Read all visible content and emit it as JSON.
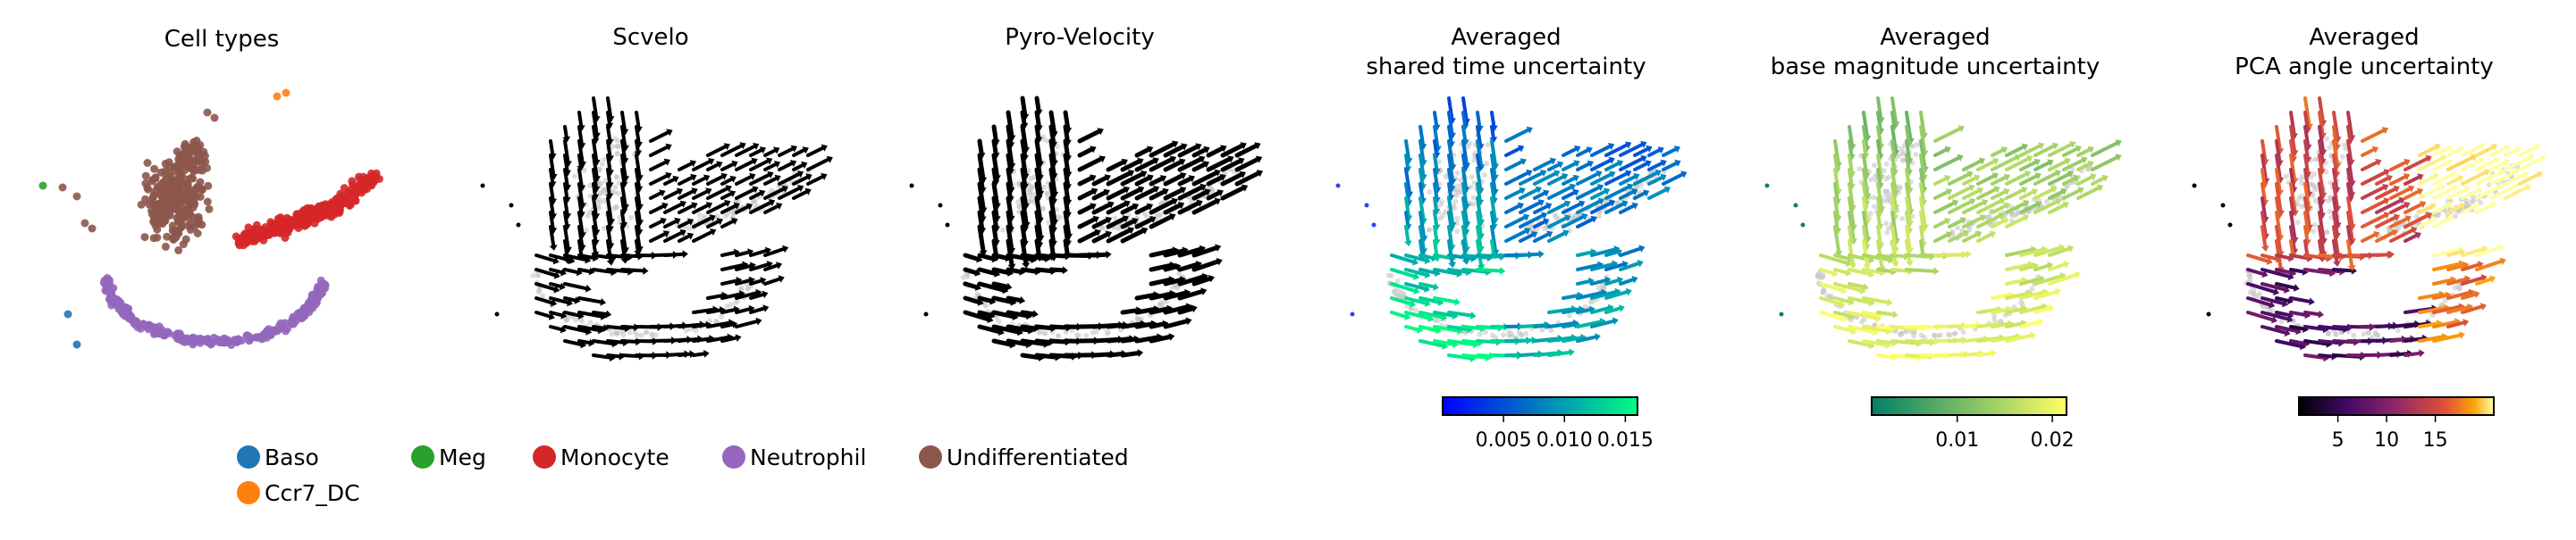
{
  "figure": {
    "panels": [
      {
        "title_lines": [
          "Cell types"
        ]
      },
      {
        "title_lines": [
          "Scvelo"
        ]
      },
      {
        "title_lines": [
          "Pyro-Velocity"
        ]
      },
      {
        "title_lines": [
          "Averaged",
          "shared time uncertainty"
        ]
      },
      {
        "title_lines": [
          "Averaged",
          "base magnitude uncertainty"
        ]
      },
      {
        "title_lines": [
          "Averaged",
          "PCA angle uncertainty"
        ]
      }
    ]
  },
  "chart_data": [
    {
      "type": "scatter",
      "title": "Cell types",
      "legend": {
        "placement": "bottom",
        "entries": [
          {
            "label": "Baso",
            "color": "#1f77b4"
          },
          {
            "label": "Meg",
            "color": "#2ca02c"
          },
          {
            "label": "Monocyte",
            "color": "#d62728"
          },
          {
            "label": "Neutrophil",
            "color": "#9467bd"
          },
          {
            "label": "Undifferentiated",
            "color": "#8c564b"
          },
          {
            "label": "Ccr7_DC",
            "color": "#ff7f0e"
          }
        ]
      },
      "axes": "off"
    },
    {
      "type": "scatter",
      "title": "Scvelo",
      "overlay": "velocity arrows",
      "arrow_color": "#000000",
      "point_color": "#c8c8c8",
      "axes": "off"
    },
    {
      "type": "scatter",
      "title": "Pyro-Velocity",
      "overlay": "velocity arrows",
      "arrow_color": "#000000",
      "point_color": "#c8c8c8",
      "axes": "off"
    },
    {
      "type": "scatter",
      "title": "Averaged shared time uncertainty",
      "overlay": "velocity arrows colored by uncertainty",
      "colormap": "winter",
      "colorbar": {
        "placement": "bottom",
        "range": [
          0.001,
          0.017
        ],
        "ticks": [
          0.005,
          0.01,
          0.015
        ],
        "tick_labels": [
          "0.005",
          "0.010",
          "0.015"
        ]
      },
      "axes": "off"
    },
    {
      "type": "scatter",
      "title": "Averaged base magnitude uncertainty",
      "overlay": "velocity arrows colored by uncertainty",
      "colormap": "summer",
      "colorbar": {
        "placement": "bottom",
        "range": [
          0.002,
          0.0225
        ],
        "ticks": [
          0.01,
          0.02
        ],
        "tick_labels": [
          "0.01",
          "0.02"
        ]
      },
      "axes": "off"
    },
    {
      "type": "scatter",
      "title": "Averaged PCA angle uncertainty",
      "overlay": "velocity arrows colored by uncertainty",
      "colormap": "inferno",
      "colorbar": {
        "placement": "bottom",
        "range": [
          1,
          21
        ],
        "ticks": [
          5,
          10,
          15
        ],
        "tick_labels": [
          "5",
          "10",
          "15"
        ]
      },
      "axes": "off"
    }
  ]
}
